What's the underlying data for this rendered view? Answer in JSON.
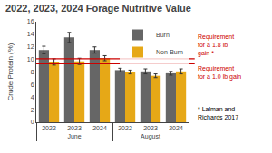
{
  "chart_data": {
    "type": "bar",
    "title": "2022, 2023, 2024 Forage Nutritive Value",
    "ylabel": "Crude Protein (%)",
    "groups": [
      "June",
      "June",
      "June",
      "August",
      "August",
      "August"
    ],
    "categories": [
      "2022",
      "2023",
      "2024",
      "2022",
      "2023",
      "2024"
    ],
    "series": [
      {
        "name": "Burn",
        "color": "#666666",
        "values": [
          11.5,
          13.5,
          11.5,
          8.3,
          8.1,
          7.8
        ],
        "errors": [
          0.6,
          0.8,
          0.5,
          0.3,
          0.4,
          0.3
        ]
      },
      {
        "name": "Non-Burn",
        "color": "#e6a817",
        "values": [
          9.6,
          9.7,
          10.2,
          8.0,
          7.4,
          8.1
        ],
        "errors": [
          0.5,
          0.5,
          0.4,
          0.3,
          0.3,
          0.4
        ]
      }
    ],
    "reference_lines": [
      {
        "value": 10.1,
        "label": "Requirement\nfor a 1.8 lb\ngain *",
        "color": "#cc0000"
      },
      {
        "value": 9.3,
        "label": "Requirement\nfor a 1.0 lb gain",
        "color": "#cc0000"
      }
    ],
    "annotations": [
      "* Lalman and\nRichards 2017"
    ],
    "ylim": [
      0,
      16
    ],
    "yticks": [
      0,
      2,
      4,
      6,
      8,
      10,
      12,
      14,
      16
    ],
    "grid": false,
    "legend": "upper right"
  }
}
